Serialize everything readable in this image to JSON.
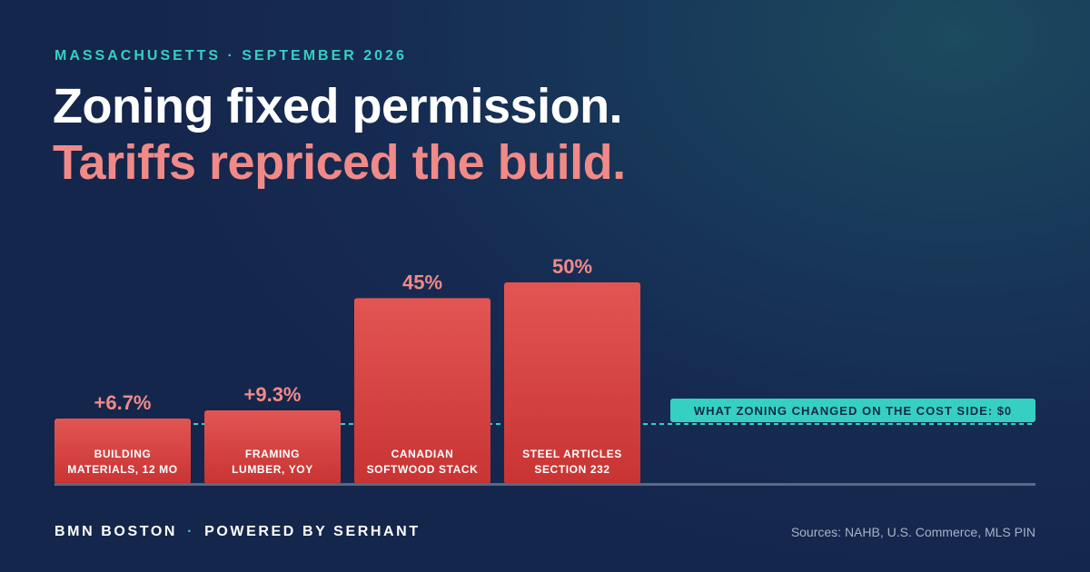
{
  "eyebrow": "MASSACHUSETTS · SEPTEMBER 2026",
  "headline": {
    "line1": "Zoning fixed permission.",
    "line2": "Tariffs repriced the build."
  },
  "chart_data": {
    "type": "bar",
    "categories": [
      [
        "BUILDING",
        "MATERIALS, 12 MO"
      ],
      [
        "FRAMING",
        "LUMBER, YOY"
      ],
      [
        "CANADIAN",
        "SOFTWOOD STACK"
      ],
      [
        "STEEL ARTICLES",
        "SECTION 232"
      ]
    ],
    "values": [
      6.7,
      9.3,
      45,
      50
    ],
    "value_labels": [
      "+6.7%",
      "+9.3%",
      "45%",
      "50%"
    ],
    "reference_line": {
      "value": 0,
      "label": "WHAT ZONING CHANGED ON THE COST SIDE: $0"
    },
    "title": "",
    "xlabel": "",
    "ylabel": "",
    "grid": false,
    "legend": "none",
    "colors": {
      "bar_top": "#e25553",
      "bar_bottom": "#c83433",
      "value_label": "#f08a88",
      "reference": "#35d0c2",
      "baseline": "#5a6882"
    }
  },
  "footer": {
    "brand_left": "BMN BOSTON",
    "separator": "·",
    "brand_right": "POWERED BY SERHANT",
    "sources": "Sources: NAHB, U.S. Commerce, MLS PIN"
  }
}
